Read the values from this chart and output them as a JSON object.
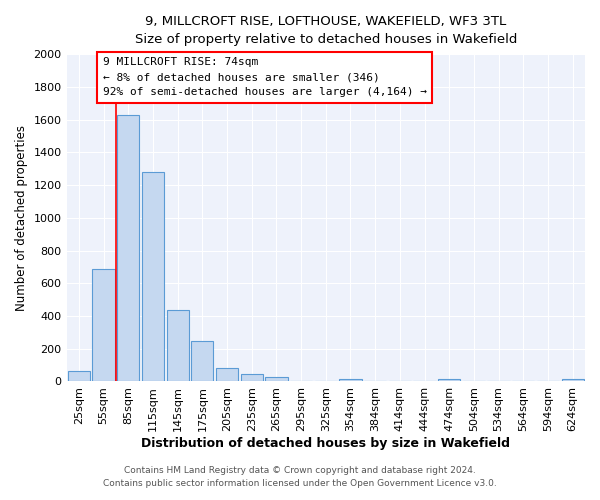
{
  "title": "9, MILLCROFT RISE, LOFTHOUSE, WAKEFIELD, WF3 3TL",
  "subtitle": "Size of property relative to detached houses in Wakefield",
  "xlabel": "Distribution of detached houses by size in Wakefield",
  "ylabel": "Number of detached properties",
  "bar_labels": [
    "25sqm",
    "55sqm",
    "85sqm",
    "115sqm",
    "145sqm",
    "175sqm",
    "205sqm",
    "235sqm",
    "265sqm",
    "295sqm",
    "325sqm",
    "354sqm",
    "384sqm",
    "414sqm",
    "444sqm",
    "474sqm",
    "504sqm",
    "534sqm",
    "564sqm",
    "594sqm",
    "624sqm"
  ],
  "bar_values": [
    65,
    690,
    1630,
    1280,
    435,
    250,
    85,
    48,
    25,
    0,
    0,
    15,
    0,
    0,
    0,
    15,
    0,
    0,
    0,
    0,
    15
  ],
  "bar_color": "#c5d8f0",
  "bar_edge_color": "#5b9bd5",
  "ylim": [
    0,
    2000
  ],
  "yticks": [
    0,
    200,
    400,
    600,
    800,
    1000,
    1200,
    1400,
    1600,
    1800,
    2000
  ],
  "red_line_x": 1.5,
  "annotation_line1": "9 MILLCROFT RISE: 74sqm",
  "annotation_line2": "← 8% of detached houses are smaller (346)",
  "annotation_line3": "92% of semi-detached houses are larger (4,164) →",
  "footer1": "Contains HM Land Registry data © Crown copyright and database right 2024.",
  "footer2": "Contains public sector information licensed under the Open Government Licence v3.0.",
  "background_color": "#ffffff",
  "plot_bg_color": "#eef2fb",
  "grid_color": "#ffffff"
}
